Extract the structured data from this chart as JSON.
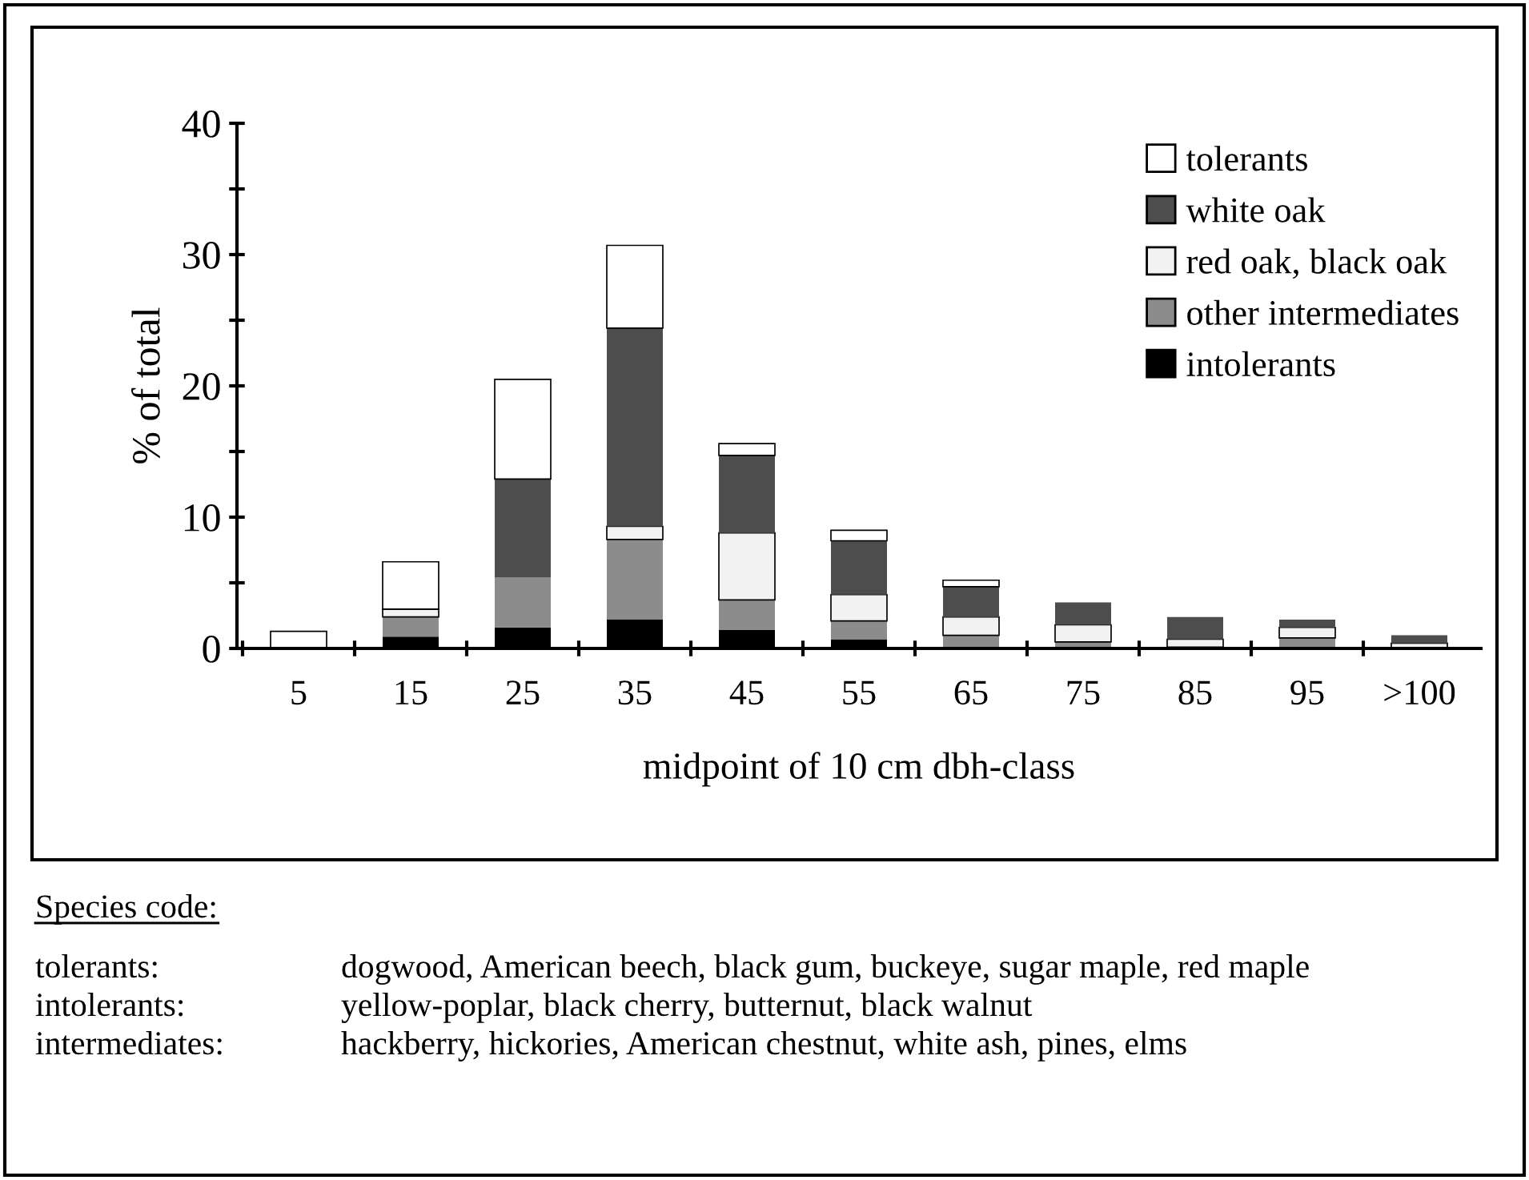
{
  "chart_data": {
    "type": "bar",
    "stacked": true,
    "xlabel": "midpoint of 10 cm dbh-class",
    "ylabel": "% of total",
    "categories": [
      "5",
      "15",
      "25",
      "35",
      "45",
      "55",
      "65",
      "75",
      "85",
      "95",
      ">100"
    ],
    "series": [
      {
        "name": "intolerants",
        "color": "#000000",
        "values": [
          0,
          0.9,
          1.6,
          2.2,
          1.4,
          0.7,
          null,
          null,
          0,
          null,
          0
        ]
      },
      {
        "name": "other intermediates",
        "color": "#8c8c8c",
        "values": [
          null,
          1.5,
          3.8,
          6.1,
          2.3,
          1.4,
          1.0,
          0.5,
          0.1,
          0.8,
          null
        ]
      },
      {
        "name": "red oak, black oak",
        "color": "#f2f2f2",
        "values": [
          0,
          0.6,
          0,
          1.0,
          5.1,
          2.0,
          1.4,
          1.3,
          0.6,
          0.8,
          0.4
        ]
      },
      {
        "name": "white oak",
        "color": "#4d4d4d",
        "values": [
          0,
          0,
          7.5,
          15.1,
          5.9,
          4.1,
          2.3,
          1.7,
          1.7,
          0.6,
          0.6
        ]
      },
      {
        "name": "tolerants",
        "color": "#ffffff",
        "values": [
          1.3,
          3.6,
          7.6,
          6.3,
          0.9,
          0.8,
          0.5,
          0,
          0,
          0,
          0
        ]
      }
    ],
    "ylim": [
      0,
      40
    ],
    "yticks": [
      0,
      {
        "value": 5,
        "label": null
      },
      10,
      {
        "value": 15,
        "label": null
      },
      20,
      {
        "value": 25,
        "label": null
      },
      30,
      {
        "value": 35,
        "label": null
      },
      40
    ],
    "grid": false,
    "legend": "top right",
    "annotations": [
      "Species code:",
      "tolerants:",
      "dogwood, American beech, black gum, buckeye, sugar maple, red maple",
      "intolerants:",
      "yellow-poplar, black cherry, butternut, black walnut",
      "intermediates:",
      "hackberry, hickories, American chestnut, white ash, pines, elms"
    ]
  }
}
